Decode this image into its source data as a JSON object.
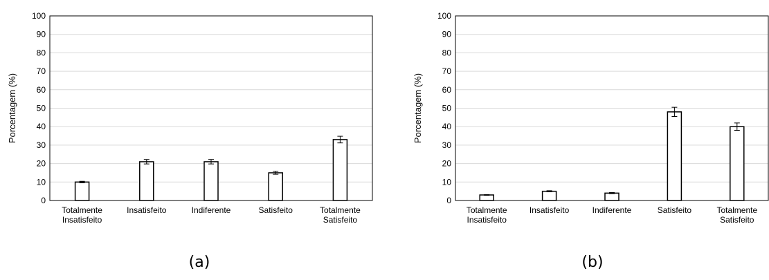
{
  "chart_data": [
    {
      "type": "bar",
      "panel_label": "(a)",
      "categories": [
        "Totalmente Insatisfeito",
        "Insatisfeito",
        "Indiferente",
        "Satisfeito",
        "Totalmente Satisfeito"
      ],
      "values": [
        10,
        21,
        21,
        15,
        33
      ],
      "errors": [
        0.4,
        1.2,
        1.2,
        0.8,
        1.8
      ],
      "ylabel": "Porcentagem (%)",
      "ylim": [
        0,
        100
      ],
      "yticks": [
        "0",
        "10",
        "20",
        "30",
        "40",
        "50",
        "60",
        "70",
        "80",
        "90",
        "100"
      ],
      "grid": true,
      "bar_fill": "#ffffff",
      "bar_stroke": "#000000",
      "grid_color": "#d9d9d9"
    },
    {
      "type": "bar",
      "panel_label": "(b)",
      "categories": [
        "Totalmente Insatisfeito",
        "Insatisfeito",
        "Indiferente",
        "Satisfeito",
        "Totalmente Satisfeito"
      ],
      "values": [
        3,
        5,
        4,
        48,
        40
      ],
      "errors": [
        0.2,
        0.3,
        0.3,
        2.5,
        2.0
      ],
      "ylabel": "Porcentagem (%)",
      "ylim": [
        0,
        100
      ],
      "yticks": [
        "0",
        "10",
        "20",
        "30",
        "40",
        "50",
        "60",
        "70",
        "80",
        "90",
        "100"
      ],
      "grid": true,
      "bar_fill": "#ffffff",
      "bar_stroke": "#000000",
      "grid_color": "#d9d9d9"
    }
  ]
}
